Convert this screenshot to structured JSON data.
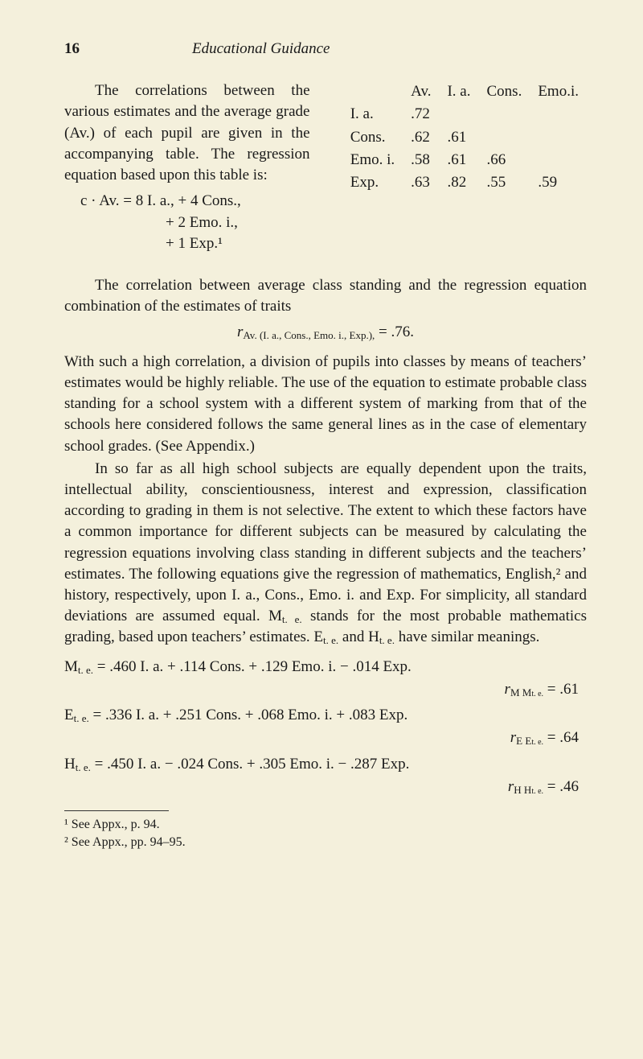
{
  "header": {
    "page_number": "16",
    "running_title": "Educational Guidance"
  },
  "para1_left": "The correlations between the various estimates and the average grade (Av.) of each pupil are given in the accompanying table. The regression equation based upon this table is:",
  "table": {
    "col_headers": [
      "",
      "Av.",
      "I. a.",
      "Cons.",
      "Emo.i."
    ],
    "rows": [
      [
        "I. a.",
        ".72",
        "",
        "",
        ""
      ],
      [
        "Cons.",
        ".62",
        ".61",
        "",
        ""
      ],
      [
        "Emo. i.",
        ".58",
        ".61",
        ".66",
        ""
      ],
      [
        "Exp.",
        ".63",
        ".82",
        ".55",
        ".59"
      ]
    ]
  },
  "eq1": {
    "line1": "c · Av. = 8 I. a., + 4 Cons.,",
    "line2": "+ 2 Emo. i.,",
    "line3": "+ 1 Exp.¹"
  },
  "para2": "The correlation between average class standing and the regression equation combination of the estimates of traits",
  "eq_r": {
    "r": "r",
    "sub": "Av. (I. a., Cons., Emo. i., Exp.),",
    "eq": " = .76."
  },
  "para3": "With such a high correlation, a division of pupils into classes by means of teachers’ estimates would be highly reliable. The use of the equation to estimate probable class standing for a school system with a different system of marking from that of the schools here considered follows the same general lines as in the case of elementary school grades. (See Appendix.)",
  "para4_a": "In so far as all high school subjects are equally dependent upon the traits, intellectual ability, conscientiousness, interest and expression, classification according to grading in them is not selective. The extent to which these factors have a common importance for different subjects can be measured by calculating the regression equations involving class standing in different subjects and the teachers’ estimates. The following equations give the regression of mathematics, English,² and history, respectively, upon I. a., Cons., Emo. i. and Exp. For simplicity, all standard deviations are assumed equal. M",
  "para4_sub1": "t. e.",
  "para4_b": " stands for the most probable mathematics grading, based upon teachers’ estimates. E",
  "para4_sub2": "t. e.",
  "para4_c": " and H",
  "para4_sub3": "t. e.",
  "para4_d": " have similar meanings.",
  "reg": {
    "M": {
      "lhs": "M",
      "sub": "t. e.",
      "rest": " = .460 I. a. + .114 Cons. + .129 Emo. i. − .014 Exp."
    },
    "rM": {
      "r": "r",
      "sub1": "M M",
      "sub2": "t. e.",
      "eq": " = .61"
    },
    "E": {
      "lhs": "E",
      "sub": "t. e.",
      "rest": " = .336 I. a. + .251 Cons. + .068 Emo. i. + .083 Exp."
    },
    "rE": {
      "r": "r",
      "sub1": "E E",
      "sub2": "t. e.",
      "eq": " = .64"
    },
    "H": {
      "lhs": "H",
      "sub": "t. e.",
      "rest": " = .450 I. a. − .024 Cons. + .305 Emo. i. − .287 Exp."
    },
    "rH": {
      "r": "r",
      "sub1": "H H",
      "sub2": "t. e.",
      "eq": " = .46"
    }
  },
  "footnotes": {
    "f1": "¹ See Appx., p. 94.",
    "f2": "² See Appx., pp. 94–95."
  }
}
